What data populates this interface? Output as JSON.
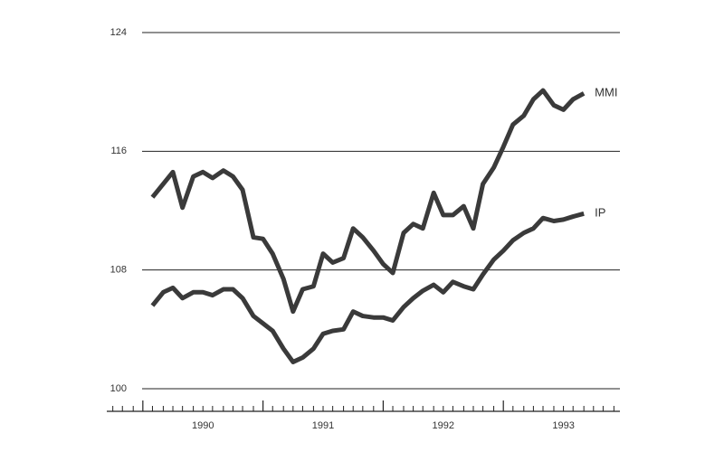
{
  "chart_data": {
    "type": "line",
    "x": [
      1990.08,
      1990.17,
      1990.25,
      1990.33,
      1990.42,
      1990.5,
      1990.58,
      1990.67,
      1990.75,
      1990.83,
      1990.92,
      1991,
      1991.08,
      1991.17,
      1991.25,
      1991.33,
      1991.42,
      1991.5,
      1991.58,
      1991.67,
      1991.75,
      1991.83,
      1991.92,
      1992,
      1992.08,
      1992.17,
      1992.25,
      1992.33,
      1992.42,
      1992.5,
      1992.58,
      1992.67,
      1992.75,
      1992.83,
      1992.92,
      1993,
      1993.08,
      1993.17,
      1993.25,
      1993.33,
      1993.42,
      1993.5,
      1993.58,
      1993.67
    ],
    "series": [
      {
        "name": "MMI",
        "color": "#3a3a3a",
        "values": [
          112.9,
          113.8,
          114.6,
          112.2,
          114.3,
          114.6,
          114.2,
          114.7,
          114.3,
          113.4,
          110.2,
          110.1,
          109.1,
          107.4,
          105.2,
          106.7,
          106.9,
          109.1,
          108.5,
          108.8,
          110.8,
          110.2,
          109.3,
          108.4,
          107.8,
          110.5,
          111.1,
          110.8,
          113.2,
          111.7,
          111.7,
          112.3,
          110.8,
          113.8,
          114.9,
          116.3,
          117.8,
          118.4,
          119.5,
          120.1,
          119.1,
          118.8,
          119.5,
          119.9
        ]
      },
      {
        "name": "IP",
        "color": "#3a3a3a",
        "values": [
          105.6,
          106.5,
          106.8,
          106.1,
          106.5,
          106.5,
          106.3,
          106.7,
          106.7,
          106.1,
          104.9,
          104.4,
          103.9,
          102.7,
          101.8,
          102.1,
          102.7,
          103.7,
          103.9,
          104.0,
          105.2,
          104.9,
          104.8,
          104.8,
          104.6,
          105.5,
          106.1,
          106.6,
          107.0,
          106.5,
          107.2,
          106.9,
          106.7,
          107.7,
          108.7,
          109.3,
          110.0,
          110.5,
          110.8,
          111.5,
          111.3,
          111.4,
          111.6,
          111.8
        ]
      }
    ],
    "xlim": [
      1989.7,
      1993.97
    ],
    "xticks": [
      {
        "value": 1990.5,
        "label": "1990"
      },
      {
        "value": 1991.5,
        "label": "1991"
      },
      {
        "value": 1992.5,
        "label": "1992"
      },
      {
        "value": 1993.5,
        "label": "1993"
      }
    ],
    "xmajorticks": [
      1990,
      1991,
      1992,
      1993
    ],
    "xminorticks": [
      1989.75,
      1989.83,
      1989.92,
      1990.08,
      1990.17,
      1990.25,
      1990.33,
      1990.42,
      1990.5,
      1990.58,
      1990.67,
      1990.75,
      1990.83,
      1990.92,
      1991.08,
      1991.17,
      1991.25,
      1991.33,
      1991.42,
      1991.5,
      1991.58,
      1991.67,
      1991.75,
      1991.83,
      1991.92,
      1992.08,
      1992.17,
      1992.25,
      1992.33,
      1992.42,
      1992.5,
      1992.58,
      1992.67,
      1992.75,
      1992.83,
      1992.92,
      1993.08,
      1993.17,
      1993.25,
      1993.33,
      1993.42,
      1993.5,
      1993.58,
      1993.67,
      1993.75,
      1993.83,
      1993.92
    ],
    "ylim": [
      100,
      124
    ],
    "yticks": [
      100,
      108,
      116,
      124
    ],
    "grid": true
  }
}
